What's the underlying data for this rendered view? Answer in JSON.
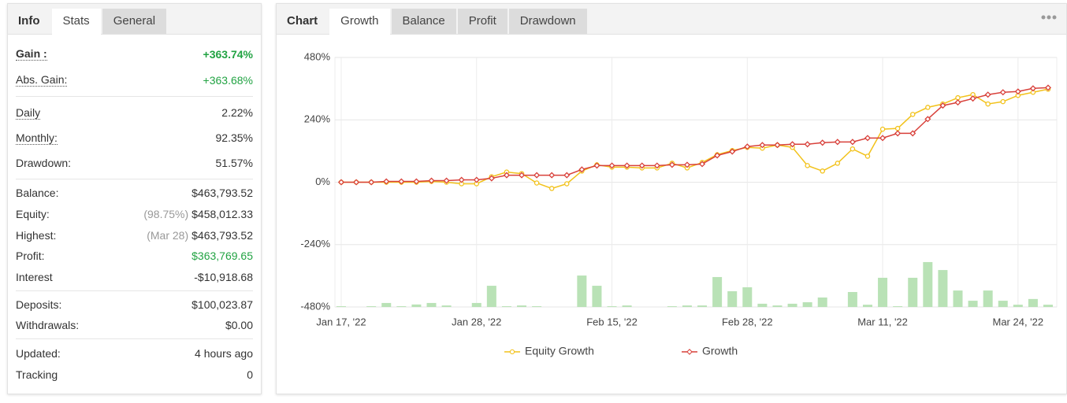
{
  "info_panel": {
    "tabs": [
      "Info",
      "Stats",
      "General"
    ],
    "groups": [
      [
        {
          "label": "Gain :",
          "value": "+363.74%"
        },
        {
          "label": "Abs. Gain:",
          "value": "+363.68%"
        }
      ],
      [
        {
          "label": "Daily",
          "value": "2.22%"
        },
        {
          "label": "Monthly:",
          "value": "92.35%"
        },
        {
          "label": "Drawdown:",
          "value": "51.57%"
        }
      ],
      [
        {
          "label": "Balance:",
          "value": "$463,793.52"
        },
        {
          "label": "Equity:",
          "note": "(98.75%)",
          "value": "$458,012.33"
        },
        {
          "label": "Highest:",
          "note": "(Mar 28)",
          "value": "$463,793.52"
        },
        {
          "label": "Profit:",
          "value": "$363,769.65"
        },
        {
          "label": "Interest",
          "value": "-$10,918.68"
        }
      ],
      [
        {
          "label": "Deposits:",
          "value": "$100,023.87"
        },
        {
          "label": "Withdrawals:",
          "value": "$0.00"
        }
      ],
      [
        {
          "label": "Updated:",
          "value": "4 hours ago"
        },
        {
          "label": "Tracking",
          "value": "0"
        }
      ]
    ]
  },
  "chart_panel": {
    "tabs": [
      "Chart",
      "Growth",
      "Balance",
      "Profit",
      "Drawdown"
    ]
  },
  "chart_data": {
    "type": "line",
    "categories": [
      "Jan 17, '22",
      null,
      null,
      null,
      null,
      null,
      null,
      null,
      null,
      "Jan 28, '22",
      null,
      null,
      null,
      null,
      null,
      null,
      null,
      null,
      "Feb 15, '22",
      null,
      null,
      null,
      null,
      null,
      null,
      null,
      null,
      "Feb 28, '22",
      null,
      null,
      null,
      null,
      null,
      null,
      null,
      null,
      "Mar 11, '22",
      null,
      null,
      null,
      null,
      null,
      null,
      null,
      null,
      "Mar 24, '22",
      null,
      null
    ],
    "series": [
      {
        "name": "Equity Growth",
        "color": "#f2c21b",
        "values": [
          0,
          0,
          0,
          0,
          0,
          0,
          3,
          0,
          -6,
          -6,
          21,
          39,
          33,
          -3,
          -24,
          -6,
          43,
          67,
          58,
          58,
          55,
          55,
          73,
          55,
          76,
          106,
          122,
          134,
          131,
          143,
          134,
          64,
          43,
          73,
          128,
          100,
          204,
          207,
          261,
          288,
          301,
          325,
          337,
          301,
          310,
          334,
          346,
          358
        ]
      },
      {
        "name": "Growth",
        "color": "#d8403a",
        "values": [
          0,
          0,
          0,
          3,
          3,
          3,
          6,
          6,
          9,
          9,
          15,
          27,
          27,
          27,
          27,
          27,
          49,
          64,
          64,
          64,
          64,
          64,
          67,
          67,
          70,
          103,
          118,
          137,
          143,
          143,
          146,
          146,
          152,
          155,
          155,
          170,
          170,
          188,
          188,
          243,
          295,
          307,
          322,
          337,
          346,
          349,
          361,
          363.74
        ]
      },
      {
        "type": "bar",
        "axis": "y2",
        "color": "#b9e2b6",
        "values": [
          0.3,
          0,
          0.3,
          1.6,
          0.3,
          1,
          1.6,
          0.6,
          0,
          1.6,
          8.5,
          0.3,
          0.6,
          0.3,
          0,
          0,
          12.6,
          8.5,
          0.3,
          0.6,
          0,
          0,
          0.3,
          0.6,
          0.6,
          12,
          6.3,
          7.9,
          1.3,
          0.6,
          1.3,
          1.9,
          3.8,
          0,
          6,
          0.9,
          11.7,
          0.3,
          11.7,
          18,
          14.8,
          6.6,
          2.5,
          6.6,
          2.5,
          0.9,
          3.2,
          0.9
        ]
      }
    ],
    "ylim": [
      -480,
      480
    ],
    "yticks": [
      {
        "value": -480,
        "label": "-480%"
      },
      {
        "value": -240,
        "label": "-240%"
      },
      {
        "value": 0,
        "label": "0%"
      },
      {
        "value": 240,
        "label": "240%"
      },
      {
        "value": 480,
        "label": "480%"
      }
    ],
    "y2lim": [
      0,
      100
    ],
    "grid": true
  }
}
